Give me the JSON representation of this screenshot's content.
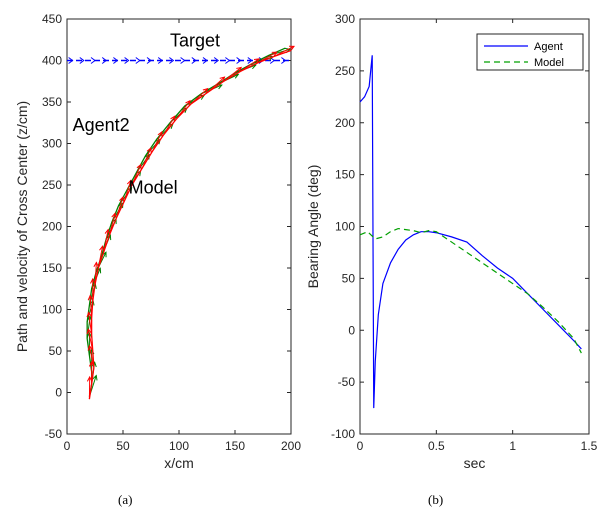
{
  "chart_data": [
    {
      "type": "quiver",
      "xlabel": "x/cm",
      "ylabel": "Path and velocity of Cross Center (z/cm)",
      "xlim": [
        0,
        200
      ],
      "ylim": [
        -50,
        450
      ],
      "xticks": [
        "0",
        "50",
        "100",
        "150",
        "200"
      ],
      "yticks": [
        "-50",
        "0",
        "50",
        "100",
        "150",
        "200",
        "250",
        "300",
        "350",
        "400",
        "450"
      ],
      "annotations": [
        {
          "text": "Target",
          "x": 92,
          "y": 417
        },
        {
          "text": "Agent2",
          "x": 5,
          "y": 315
        },
        {
          "text": "Model",
          "x": 55,
          "y": 240
        }
      ],
      "target": {
        "name": "Target",
        "z": 400,
        "x_start": 0,
        "x_end": 200,
        "color": "#0000ff"
      },
      "series": [
        {
          "name": "Agent2",
          "color": "#008000",
          "points": [
            [
              20,
              -5
            ],
            [
              22,
              10
            ],
            [
              22,
              25
            ],
            [
              20,
              45
            ],
            [
              18,
              65
            ],
            [
              18,
              85
            ],
            [
              20,
              105
            ],
            [
              22,
              125
            ],
            [
              26,
              145
            ],
            [
              31,
              165
            ],
            [
              35,
              185
            ],
            [
              40,
              205
            ],
            [
              46,
              225
            ],
            [
              54,
              245
            ],
            [
              62,
              265
            ],
            [
              70,
              285
            ],
            [
              80,
              305
            ],
            [
              92,
              325
            ],
            [
              105,
              345
            ],
            [
              120,
              360
            ],
            [
              135,
              372
            ],
            [
              150,
              385
            ],
            [
              165,
              396
            ],
            [
              180,
              406
            ],
            [
              195,
              415
            ]
          ]
        },
        {
          "name": "Model",
          "color": "#ff0000",
          "points": [
            [
              20,
              -8
            ],
            [
              22,
              10
            ],
            [
              24,
              30
            ],
            [
              23,
              50
            ],
            [
              22,
              70
            ],
            [
              22,
              90
            ],
            [
              23,
              110
            ],
            [
              25,
              130
            ],
            [
              28,
              150
            ],
            [
              33,
              170
            ],
            [
              38,
              190
            ],
            [
              44,
              210
            ],
            [
              51,
              230
            ],
            [
              58,
              250
            ],
            [
              67,
              270
            ],
            [
              76,
              290
            ],
            [
              86,
              310
            ],
            [
              98,
              330
            ],
            [
              111,
              348
            ],
            [
              126,
              362
            ],
            [
              140,
              375
            ],
            [
              155,
              387
            ],
            [
              170,
              397
            ],
            [
              185,
              405
            ],
            [
              200,
              412
            ]
          ]
        }
      ]
    },
    {
      "type": "line",
      "xlabel": "sec",
      "ylabel": "Bearing Angle (deg)",
      "xlim": [
        0,
        1.5
      ],
      "ylim": [
        -100,
        300
      ],
      "xticks": [
        "0",
        "0.5",
        "1",
        "1.5"
      ],
      "yticks": [
        "-100",
        "-50",
        "0",
        "50",
        "100",
        "150",
        "200",
        "250",
        "300"
      ],
      "legend": {
        "position": "top-right",
        "entries": [
          "Agent",
          "Model"
        ]
      },
      "series": [
        {
          "name": "Agent",
          "color": "#0000ff",
          "style": "solid",
          "x": [
            0,
            0.03,
            0.06,
            0.08,
            0.09,
            0.1,
            0.12,
            0.15,
            0.2,
            0.25,
            0.3,
            0.35,
            0.4,
            0.45,
            0.5,
            0.6,
            0.7,
            0.8,
            0.9,
            1.0,
            1.1,
            1.2,
            1.3,
            1.4,
            1.45
          ],
          "y": [
            220,
            225,
            235,
            265,
            -75,
            -30,
            15,
            45,
            65,
            78,
            87,
            92,
            95,
            95,
            94,
            90,
            85,
            72,
            60,
            50,
            35,
            20,
            5,
            -10,
            -18
          ]
        },
        {
          "name": "Model",
          "color": "#00a000",
          "style": "dashed",
          "x": [
            0,
            0.05,
            0.1,
            0.15,
            0.2,
            0.25,
            0.3,
            0.35,
            0.4,
            0.45,
            0.5,
            0.6,
            0.7,
            0.8,
            0.9,
            1.0,
            1.1,
            1.2,
            1.3,
            1.4,
            1.45
          ],
          "y": [
            92,
            95,
            88,
            90,
            95,
            98,
            97,
            96,
            94,
            96,
            95,
            85,
            75,
            65,
            55,
            45,
            35,
            22,
            8,
            -8,
            -22
          ]
        }
      ]
    }
  ],
  "captions": {
    "a": "(a)",
    "b": "(b)"
  },
  "legend_labels": {
    "agent": "Agent",
    "model": "Model"
  }
}
